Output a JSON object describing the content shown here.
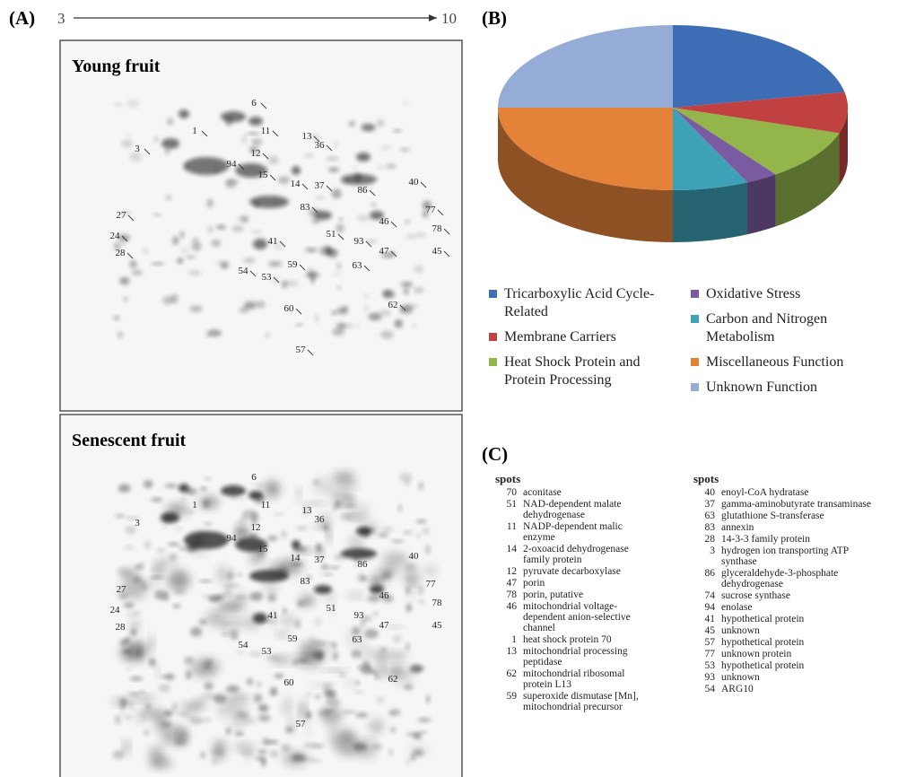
{
  "panel_a": {
    "label": "(A)",
    "axis_start": "3",
    "axis_end": "10",
    "gels": [
      {
        "title": "Young fruit",
        "spot_labels": [
          "6",
          "1",
          "11",
          "13",
          "36",
          "3",
          "12",
          "94",
          "15",
          "14",
          "37",
          "86",
          "40",
          "83",
          "77",
          "27",
          "46",
          "51",
          "78",
          "24",
          "93",
          "41",
          "47",
          "45",
          "28",
          "63",
          "59",
          "54",
          "53",
          "60",
          "62",
          "57"
        ]
      },
      {
        "title": "Senescent fruit",
        "spot_labels": [
          "6",
          "1",
          "11",
          "13",
          "36",
          "3",
          "12",
          "94",
          "15",
          "14",
          "37",
          "86",
          "40",
          "83",
          "77",
          "27",
          "46",
          "51",
          "78",
          "24",
          "93",
          "41",
          "47",
          "45",
          "28",
          "63",
          "59",
          "54",
          "53",
          "60",
          "62",
          "57"
        ]
      }
    ]
  },
  "chart_data": {
    "type": "pie",
    "label": "(B)",
    "categories": [
      "Tricarboxylic Acid Cycle-Related",
      "Membrane Carriers",
      "Heat Shock Protein and Protein Processing",
      "Oxidative Stress",
      "Carbon and Nitrogen Metabolism",
      "Miscellaneous Function",
      "Unknown Function"
    ],
    "values": [
      22,
      8,
      10,
      3,
      7,
      25,
      25
    ],
    "colors": [
      "#3d6db5",
      "#c0413f",
      "#93b54a",
      "#7a5aa0",
      "#3fa1b8",
      "#e5823a",
      "#95acd6"
    ]
  },
  "table": {
    "label": "(C)",
    "columns": [
      {
        "header": "spots",
        "rows": [
          {
            "spot": "70",
            "protein": "aconitase"
          },
          {
            "spot": "51",
            "protein": "NAD-dependent malate dehydrogenase"
          },
          {
            "spot": "11",
            "protein": "NADP-dependent malic enzyme"
          },
          {
            "spot": "14",
            "protein": "2-oxoacid dehydrogenase family protein"
          },
          {
            "spot": "12",
            "protein": "pyruvate decarboxylase"
          },
          {
            "spot": "47",
            "protein": "porin"
          },
          {
            "spot": "78",
            "protein": "porin, putative"
          },
          {
            "spot": "46",
            "protein": "mitochondrial voltage-dependent anion-selective channel"
          },
          {
            "spot": "1",
            "protein": "heat shock protein 70"
          },
          {
            "spot": "13",
            "protein": "mitochondrial processing peptidase"
          },
          {
            "spot": "62",
            "protein": "mitochondrial ribosomal protein L13"
          },
          {
            "spot": "59",
            "protein": "superoxide dismutase [Mn], mitochondrial precursor"
          }
        ]
      },
      {
        "header": "spots",
        "rows": [
          {
            "spot": "40",
            "protein": "enoyl-CoA hydratase"
          },
          {
            "spot": "37",
            "protein": "gamma-aminobutyrate transaminase"
          },
          {
            "spot": "63",
            "protein": "glutathione S-transferase"
          },
          {
            "spot": "83",
            "protein": "annexin"
          },
          {
            "spot": "28",
            "protein": "14-3-3 family protein"
          },
          {
            "spot": "3",
            "protein": "hydrogen ion transporting ATP synthase"
          },
          {
            "spot": "86",
            "protein": "glyceraldehyde-3-phosphate dehydrogenase"
          },
          {
            "spot": "74",
            "protein": "sucrose synthase"
          },
          {
            "spot": "94",
            "protein": "enolase"
          },
          {
            "spot": "41",
            "protein": "hypothetical protein"
          },
          {
            "spot": "45",
            "protein": "unknown"
          },
          {
            "spot": "57",
            "protein": "hypothetical protein"
          },
          {
            "spot": "77",
            "protein": "unknown protein"
          },
          {
            "spot": "53",
            "protein": "hypothetical protein"
          },
          {
            "spot": "93",
            "protein": "unknown"
          },
          {
            "spot": "54",
            "protein": "ARG10"
          }
        ]
      }
    ]
  }
}
